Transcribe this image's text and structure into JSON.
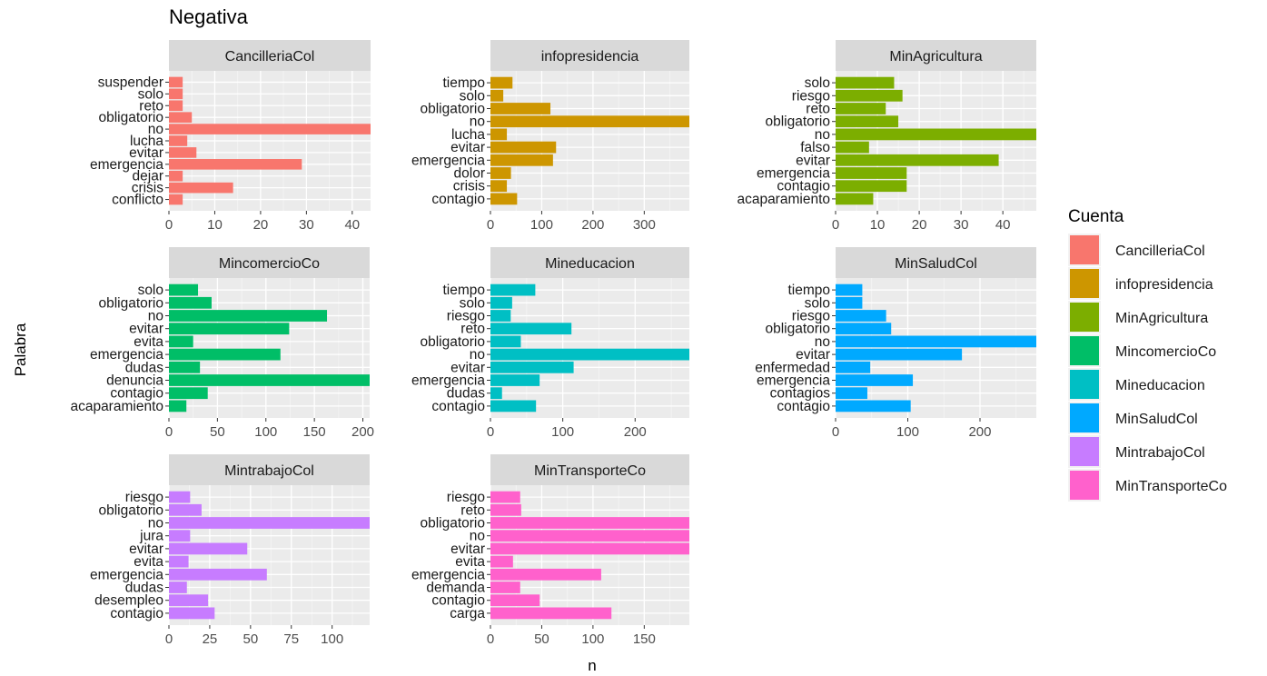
{
  "chart_data": {
    "type": "bar",
    "orientation": "horizontal",
    "title": "Negativa",
    "xlabel": "n",
    "ylabel": "Palabra",
    "legend_title": "Cuenta",
    "legend_position": "right",
    "grid": true,
    "legend": [
      {
        "name": "CancilleriaCol",
        "color": "#F8766D"
      },
      {
        "name": "infopresidencia",
        "color": "#CD9600"
      },
      {
        "name": "MinAgricultura",
        "color": "#7CAE00"
      },
      {
        "name": "MincomercioCo",
        "color": "#00BE67"
      },
      {
        "name": "Mineducacion",
        "color": "#00BFC4"
      },
      {
        "name": "MinSaludCol",
        "color": "#00A9FF"
      },
      {
        "name": "MintrabajoCol",
        "color": "#C77CFF"
      },
      {
        "name": "MinTransporteCo",
        "color": "#FF61CC"
      }
    ],
    "panels": [
      {
        "name": "CancilleriaCol",
        "color": "#F8766D",
        "xlim": [
          0,
          44
        ],
        "ticks": [
          0,
          10,
          20,
          30,
          40
        ],
        "categories": [
          "suspender",
          "solo",
          "reto",
          "obligatorio",
          "no",
          "lucha",
          "evitar",
          "emergencia",
          "dejar",
          "crisis",
          "conflicto"
        ],
        "values": [
          3,
          3,
          3,
          5,
          44,
          4,
          6,
          29,
          3,
          14,
          3
        ]
      },
      {
        "name": "infopresidencia",
        "color": "#CD9600",
        "xlim": [
          0,
          388
        ],
        "ticks": [
          0,
          100,
          200,
          300
        ],
        "categories": [
          "tiempo",
          "solo",
          "obligatorio",
          "no",
          "lucha",
          "evitar",
          "emergencia",
          "dolor",
          "crisis",
          "contagio"
        ],
        "values": [
          43,
          25,
          117,
          388,
          32,
          128,
          122,
          40,
          32,
          52
        ]
      },
      {
        "name": "MinAgricultura",
        "color": "#7CAE00",
        "xlim": [
          0,
          48
        ],
        "ticks": [
          0,
          10,
          20,
          30,
          40
        ],
        "categories": [
          "solo",
          "riesgo",
          "reto",
          "obligatorio",
          "no",
          "falso",
          "evitar",
          "emergencia",
          "contagio",
          "acaparamiento"
        ],
        "values": [
          14,
          16,
          12,
          15,
          48,
          8,
          39,
          17,
          17,
          9
        ]
      },
      {
        "name": "MincomercioCo",
        "color": "#00BE67",
        "xlim": [
          0,
          207
        ],
        "ticks": [
          0,
          50,
          100,
          150,
          200
        ],
        "categories": [
          "solo",
          "obligatorio",
          "no",
          "evitar",
          "evita",
          "emergencia",
          "dudas",
          "denuncia",
          "contagio",
          "acaparamiento"
        ],
        "values": [
          30,
          44,
          163,
          124,
          25,
          115,
          32,
          207,
          40,
          18
        ]
      },
      {
        "name": "Mineducacion",
        "color": "#00BFC4",
        "xlim": [
          0,
          275
        ],
        "ticks": [
          0,
          100,
          200
        ],
        "categories": [
          "tiempo",
          "solo",
          "riesgo",
          "reto",
          "obligatorio",
          "no",
          "evitar",
          "emergencia",
          "dudas",
          "contagio"
        ],
        "values": [
          62,
          30,
          28,
          112,
          42,
          275,
          115,
          68,
          16,
          63
        ]
      },
      {
        "name": "MinSaludCol",
        "color": "#00A9FF",
        "xlim": [
          0,
          278
        ],
        "ticks": [
          0,
          100,
          200
        ],
        "categories": [
          "tiempo",
          "solo",
          "riesgo",
          "obligatorio",
          "no",
          "evitar",
          "enfermedad",
          "emergencia",
          "contagios",
          "contagio"
        ],
        "values": [
          37,
          37,
          70,
          77,
          278,
          175,
          48,
          107,
          44,
          104
        ]
      },
      {
        "name": "MintrabajoCol",
        "color": "#C77CFF",
        "xlim": [
          0,
          123
        ],
        "ticks": [
          0,
          25,
          50,
          75,
          100
        ],
        "categories": [
          "riesgo",
          "obligatorio",
          "no",
          "jura",
          "evitar",
          "evita",
          "emergencia",
          "dudas",
          "desempleo",
          "contagio"
        ],
        "values": [
          13,
          20,
          123,
          13,
          48,
          12,
          60,
          11,
          24,
          28
        ]
      },
      {
        "name": "MinTransporteCo",
        "color": "#FF61CC",
        "xlim": [
          0,
          194
        ],
        "ticks": [
          0,
          50,
          100,
          150
        ],
        "categories": [
          "riesgo",
          "reto",
          "obligatorio",
          "no",
          "evitar",
          "evita",
          "emergencia",
          "demanda",
          "contagio",
          "carga"
        ],
        "values": [
          29,
          30,
          194,
          194,
          194,
          22,
          108,
          29,
          48,
          118
        ]
      }
    ]
  }
}
